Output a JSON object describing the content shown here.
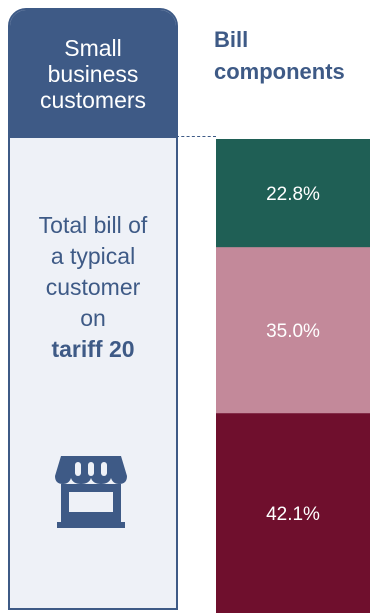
{
  "left_card": {
    "header_lines": [
      "Small",
      "business",
      "customers"
    ],
    "body_lines": [
      "Total bill of",
      "a typical",
      "customer",
      "on"
    ],
    "body_bold": "tariff 20",
    "icon": "shop-icon"
  },
  "right_header": {
    "title_lines": [
      "Bill",
      "components"
    ]
  },
  "colors": {
    "primary": "#3e5a86",
    "card_background": "#eef1f7"
  },
  "chart_data": {
    "type": "bar",
    "stacked": true,
    "categories": [
      "Bill components"
    ],
    "series": [
      {
        "label": "22.8%",
        "value": 22.8,
        "color": "#1f5f55"
      },
      {
        "label": "35.0%",
        "value": 35.0,
        "color": "#c3899a"
      },
      {
        "label": "42.1%",
        "value": 42.1,
        "color": "#6f0f2d"
      }
    ],
    "title": "Bill components",
    "xlabel": "",
    "ylabel": "",
    "ylim": [
      0,
      100
    ],
    "grid": false,
    "legend": "none"
  }
}
